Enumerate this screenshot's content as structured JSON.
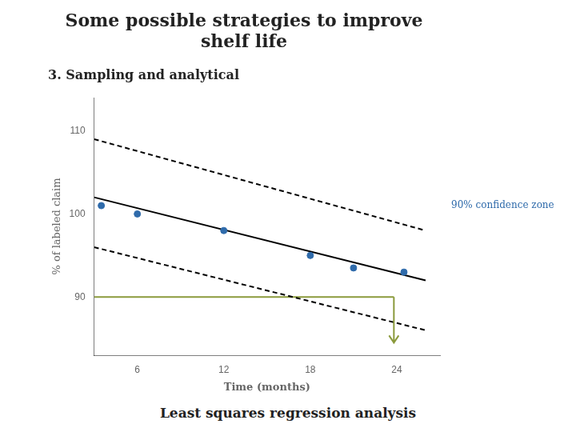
{
  "chart_data": {
    "type": "scatter",
    "title": "Some possible strategies to improve\nshelf life",
    "subtitle": "3. Sampling and analytical",
    "footer": "Least squares regression analysis",
    "xlabel": "Time (months)",
    "ylabel": "% of labeled claim",
    "xlim": [
      3,
      27
    ],
    "ylim": [
      83,
      114
    ],
    "xticks": [
      6,
      12,
      18,
      24
    ],
    "yticks": [
      90,
      100,
      110
    ],
    "grid": false,
    "series": [
      {
        "type": "scatter",
        "marker": "circle",
        "color": "#2F6BAB",
        "x": [
          3.5,
          6,
          12,
          18,
          21,
          24.5
        ],
        "values": [
          101,
          100,
          98,
          95,
          93.5,
          93
        ]
      },
      {
        "type": "line",
        "line_style": "solid",
        "color": "#000000",
        "x": [
          3,
          26
        ],
        "values": [
          102,
          92
        ]
      },
      {
        "type": "line",
        "line_style": "dashed",
        "color": "#000000",
        "x": [
          3,
          26
        ],
        "values": [
          109,
          98
        ]
      },
      {
        "type": "line",
        "line_style": "dashed",
        "color": "#000000",
        "x": [
          3,
          26
        ],
        "values": [
          96,
          86
        ]
      },
      {
        "type": "line",
        "line_style": "solid",
        "color": "#8B9A3C",
        "x": [
          3,
          23.8
        ],
        "values": [
          90,
          90
        ]
      }
    ],
    "annotations": [
      {
        "type": "arrow",
        "x": 23.8,
        "y_start": 90,
        "y_end": 84.5,
        "color": "#8B9A3C"
      },
      {
        "type": "text",
        "text": "90% confidence zone",
        "color": "#2F6BAB"
      }
    ]
  }
}
